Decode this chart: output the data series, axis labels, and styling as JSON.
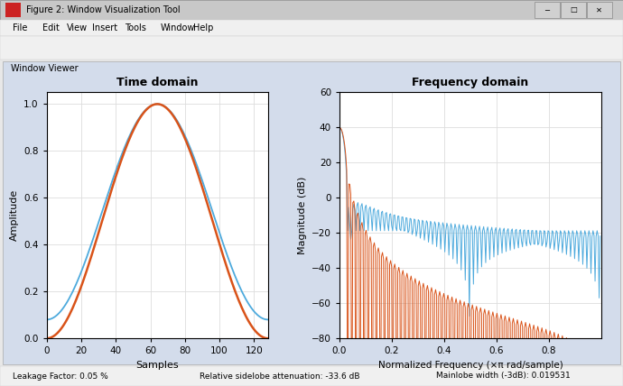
{
  "title_bar": "Figure 2: Window Visualization Tool",
  "menu_items": [
    "File",
    "Edit",
    "View",
    "Insert",
    "Tools",
    "Window",
    "Help"
  ],
  "panel_label": "Window Viewer",
  "plot1_title": "Time domain",
  "plot1_xlabel": "Samples",
  "plot1_ylabel": "Amplitude",
  "plot1_xlim": [
    0,
    128
  ],
  "plot1_ylim": [
    0,
    1.05
  ],
  "plot1_xticks": [
    0,
    20,
    40,
    60,
    80,
    100,
    120
  ],
  "plot1_ytick_vals": [
    0,
    0.2,
    0.4,
    0.6,
    0.8,
    1.0
  ],
  "plot2_title": "Frequency domain",
  "plot2_xlabel": "Normalized Frequency (×π rad/sample)",
  "plot2_ylabel": "Magnitude (dB)",
  "plot2_xlim": [
    0,
    1.0
  ],
  "plot2_ylim": [
    -80,
    60
  ],
  "plot2_xticks": [
    0,
    0.2,
    0.4,
    0.6,
    0.8
  ],
  "plot2_yticks": [
    -80,
    -60,
    -40,
    -20,
    0,
    20,
    40,
    60
  ],
  "N": 128,
  "color_blue": "#4DAADD",
  "color_orange": "#D95319",
  "titlebar_bg": "#DCDCDC",
  "titlebar_text": "#000000",
  "window_border": "#999999",
  "menubar_bg": "#F0F0F0",
  "toolbar_bg": "#F0F0F0",
  "panel_bg": "#D3DCEB",
  "axes_bg": "#FFFFFF",
  "fig_bg": "#E8E8E8",
  "status_bg": "#F0F0F0",
  "status_text1": "Leakage Factor: 0.05 %",
  "status_text2": "Relative sidelobe attenuation: -33.6 dB",
  "status_text3": "Mainlobe width (-3dB): 0.019531"
}
